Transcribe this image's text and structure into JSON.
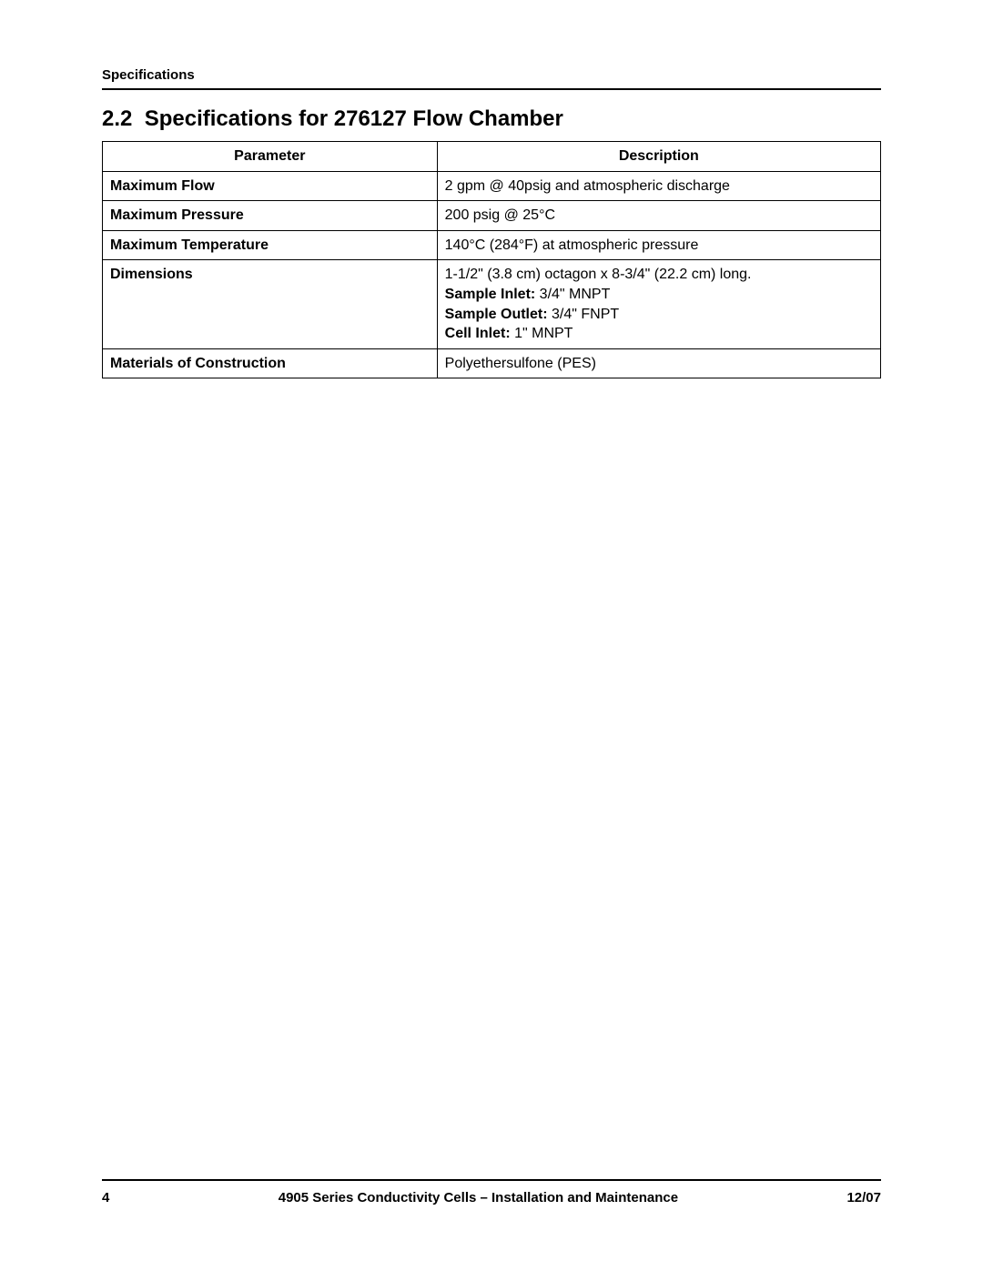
{
  "header": {
    "running_title": "Specifications"
  },
  "section": {
    "number": "2.2",
    "title": "Specifications for 276127 Flow Chamber"
  },
  "table": {
    "headers": {
      "param": "Parameter",
      "desc": "Description"
    },
    "rows": [
      {
        "param": "Maximum Flow",
        "desc": "2 gpm @ 40psig and atmospheric discharge"
      },
      {
        "param": "Maximum Pressure",
        "desc": "200 psig @ 25°C"
      },
      {
        "param": "Maximum Temperature",
        "desc": "140°C (284°F) at atmospheric pressure"
      },
      {
        "param": "Dimensions",
        "dim_line": "1-1/2\" (3.8 cm) octagon x 8-3/4\" (22.2 cm) long.",
        "sample_inlet_label": "Sample Inlet:",
        "sample_inlet_value": " 3/4\" MNPT",
        "sample_outlet_label": "Sample Outlet:",
        "sample_outlet_value": " 3/4\" FNPT",
        "cell_inlet_label": "Cell Inlet:",
        "cell_inlet_value": " 1\" MNPT"
      },
      {
        "param": "Materials of Construction",
        "desc": "Polyethersulfone (PES)"
      }
    ]
  },
  "footer": {
    "page_number": "4",
    "doc_title": "4905 Series Conductivity Cells – Installation and Maintenance",
    "date": "12/07"
  }
}
